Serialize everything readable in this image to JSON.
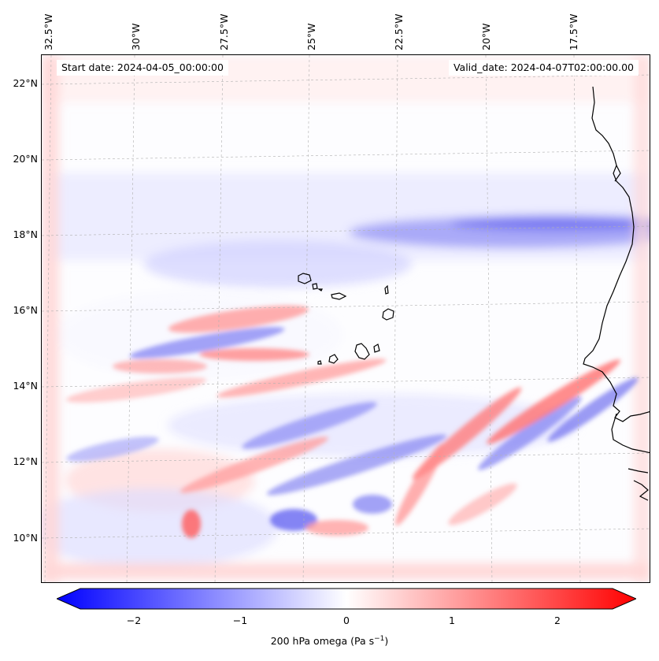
{
  "header": {
    "start_date": "Start date: 2024-04-05_00:00:00",
    "valid_date": "Valid_date: 2024-04-07T02:00:00.00"
  },
  "axes": {
    "lat_labels": [
      "22°N",
      "20°N",
      "18°N",
      "16°N",
      "14°N",
      "12°N",
      "10°N"
    ],
    "lon_labels": [
      "32.5°W",
      "30°W",
      "27.5°W",
      "25°W",
      "22.5°W",
      "20°W",
      "17.5°W"
    ]
  },
  "colorbar": {
    "label_main": "200 hPa omega (Pa s",
    "label_exp": "−1",
    "label_end": ")",
    "ticks": [
      "−2",
      "−1",
      "0",
      "1",
      "2"
    ],
    "tick_values": [
      -2,
      -1,
      0,
      1,
      2
    ],
    "range": [
      -2.5,
      2.5
    ],
    "cmap": "bwr",
    "min_color": "#0000ff",
    "mid_color": "#ffffff",
    "max_color": "#ff0000",
    "extend": "both"
  },
  "colors": {
    "coastline": "#000000",
    "gridline": "#b0b0b0"
  }
}
